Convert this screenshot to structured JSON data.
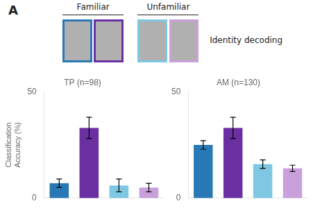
{
  "chart_data": [
    {
      "type": "bar",
      "title": "TP (n=98)",
      "ylabel": "Classification\nAccuracy (%)",
      "categories": [
        null,
        null,
        null,
        null
      ],
      "values": [
        7,
        33,
        6,
        5
      ],
      "errors": [
        2,
        5,
        3,
        2
      ],
      "colors": [
        "#2878b5",
        "#6a2fa0",
        "#7ec8e3",
        "#c9a0dc"
      ],
      "ylim": [
        0,
        50
      ],
      "yticks": [
        0,
        50
      ],
      "grid": false,
      "tick_labels": "y",
      "annotations": [
        "A",
        "Familiar",
        "Unfamiliar",
        "Identity decoding"
      ]
    },
    {
      "type": "bar",
      "title": "AM (n=130)",
      "categories": [
        null,
        null,
        null,
        null
      ],
      "values": [
        25,
        33,
        16,
        14
      ],
      "errors": [
        2,
        5,
        2,
        1.5
      ],
      "colors": [
        "#2878b5",
        "#6a2fa0",
        "#7ec8e3",
        "#c9a0dc"
      ],
      "ylim": [
        0,
        50
      ],
      "yticks": [
        0,
        50
      ],
      "grid": false,
      "tick_labels": "y"
    }
  ]
}
